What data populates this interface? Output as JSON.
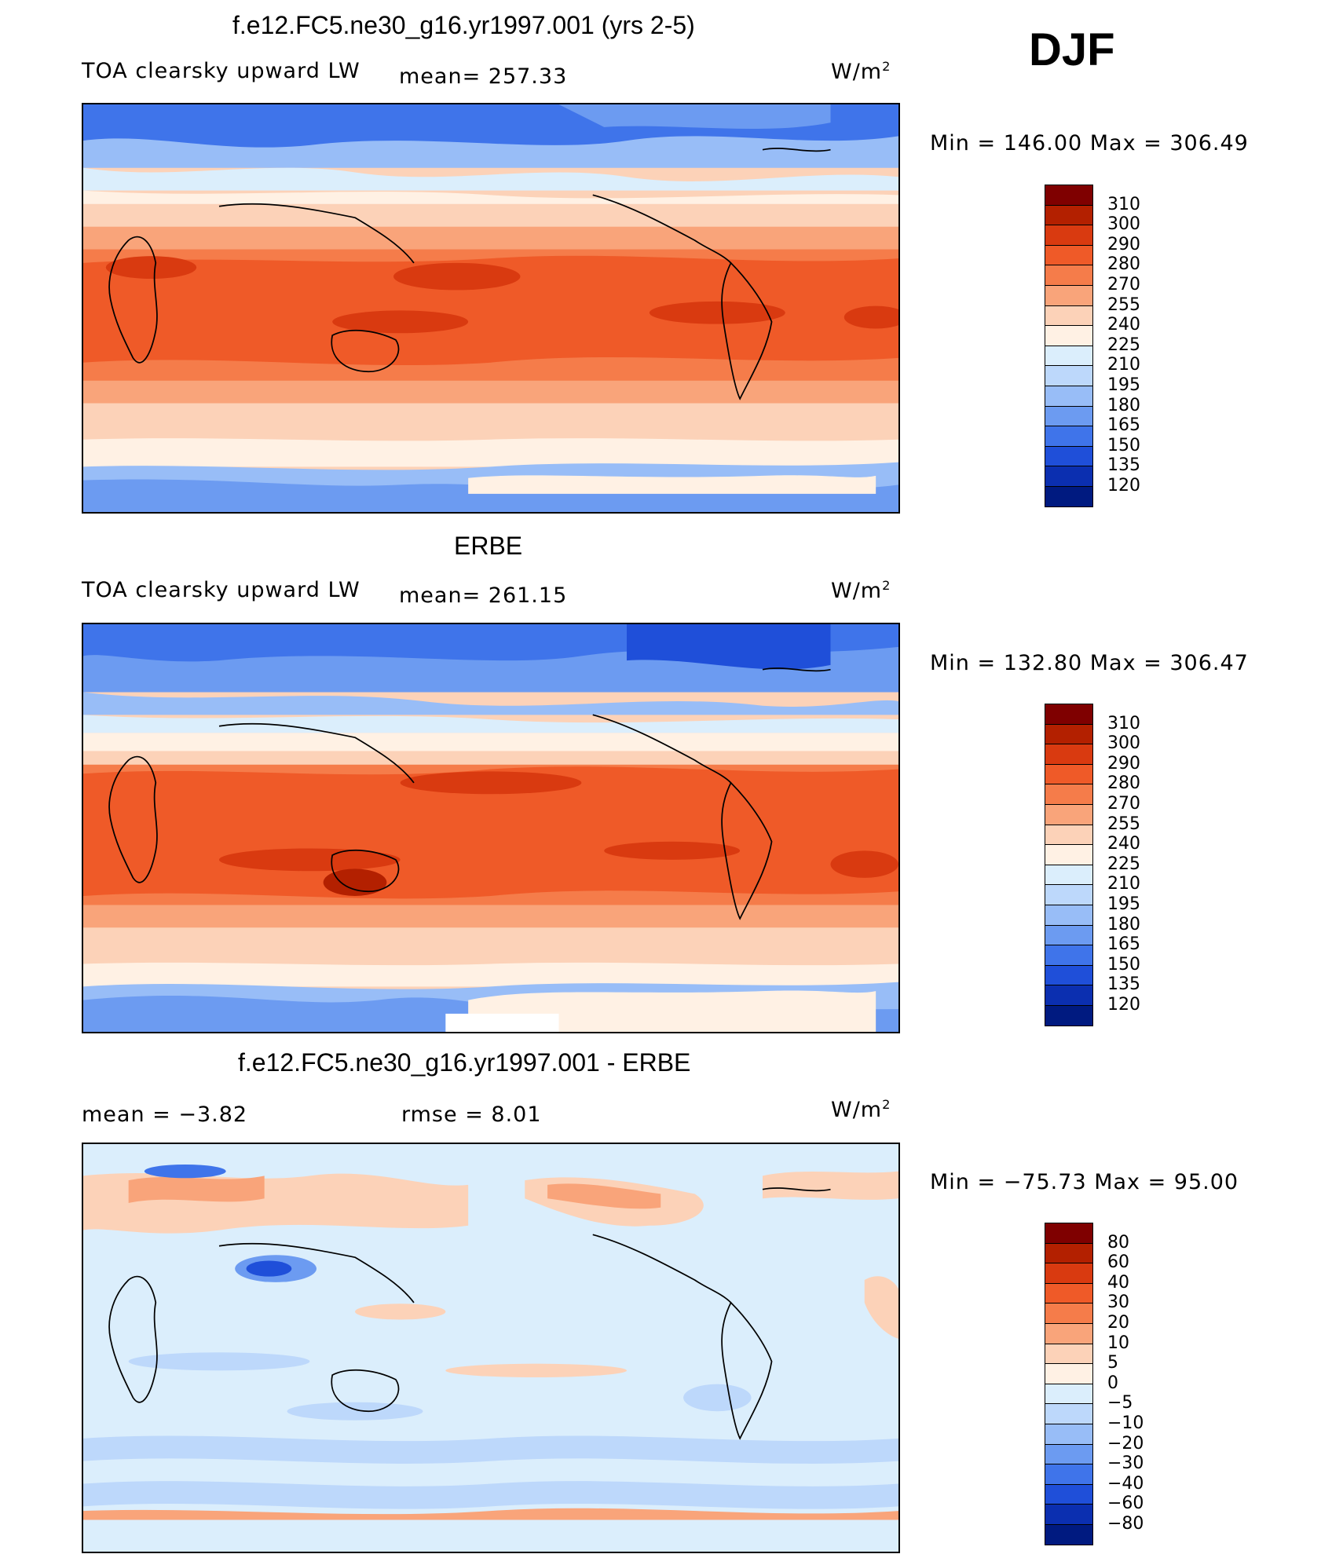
{
  "season": "DJF",
  "panels": [
    {
      "title": "f.e12.FC5.ne30_g16.yr1997.001 (yrs 2-5)",
      "left_label": "TOA clearsky upward LW",
      "mean_text": "mean= 257.33",
      "units": "W/m",
      "units_sup": "2",
      "minmax": "Min  =  146.00  Max  =  306.49",
      "colorbar": {
        "colors": [
          "#7f0000",
          "#b32000",
          "#d93a10",
          "#ef5a28",
          "#f57c4a",
          "#f9a47a",
          "#fcd2b8",
          "#fff1e4",
          "#dbeefc",
          "#bdd8fb",
          "#98bdf7",
          "#6c9bf1",
          "#3f74ea",
          "#1f4fd9",
          "#0b2fb0",
          "#001a80"
        ],
        "ticks": [
          "310",
          "300",
          "290",
          "280",
          "270",
          "255",
          "240",
          "225",
          "210",
          "195",
          "180",
          "165",
          "150",
          "135",
          "120"
        ]
      }
    },
    {
      "title": "ERBE",
      "left_label": "TOA clearsky upward LW",
      "mean_text": "mean= 261.15",
      "units": "W/m",
      "units_sup": "2",
      "minmax": "Min  =  132.80  Max  =  306.47",
      "colorbar": {
        "colors": [
          "#7f0000",
          "#b32000",
          "#d93a10",
          "#ef5a28",
          "#f57c4a",
          "#f9a47a",
          "#fcd2b8",
          "#fff1e4",
          "#dbeefc",
          "#bdd8fb",
          "#98bdf7",
          "#6c9bf1",
          "#3f74ea",
          "#1f4fd9",
          "#0b2fb0",
          "#001a80"
        ],
        "ticks": [
          "310",
          "300",
          "290",
          "280",
          "270",
          "255",
          "240",
          "225",
          "210",
          "195",
          "180",
          "165",
          "150",
          "135",
          "120"
        ]
      }
    },
    {
      "title": "f.e12.FC5.ne30_g16.yr1997.001 - ERBE",
      "mean_text": "mean  =    −3.82",
      "rmse_text": "rmse  =     8.01",
      "units": "W/m",
      "units_sup": "2",
      "minmax": "Min  =  −75.73  Max  =    95.00",
      "colorbar": {
        "colors": [
          "#7f0000",
          "#b32000",
          "#d93a10",
          "#ef5a28",
          "#f57c4a",
          "#f9a47a",
          "#fcd2b8",
          "#fff1e4",
          "#dbeefc",
          "#bdd8fb",
          "#98bdf7",
          "#6c9bf1",
          "#3f74ea",
          "#1f4fd9",
          "#0b2fb0",
          "#001a80"
        ],
        "ticks": [
          "80",
          "60",
          "40",
          "30",
          "20",
          "10",
          "5",
          "0",
          "−5",
          "−10",
          "−20",
          "−30",
          "−40",
          "−60",
          "−80"
        ]
      }
    }
  ]
}
